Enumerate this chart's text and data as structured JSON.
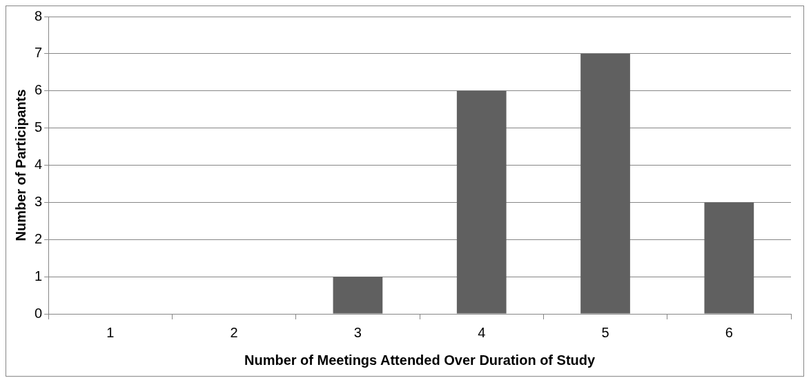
{
  "chart_data": {
    "type": "bar",
    "xlabel": "Number of Meetings Attended Over Duration of Study",
    "ylabel": "Number of Participants",
    "categories": [
      "1",
      "2",
      "3",
      "4",
      "5",
      "6"
    ],
    "values": [
      0,
      0,
      1,
      6,
      7,
      3
    ],
    "color": "#606060",
    "ylim": [
      0,
      8
    ],
    "yticks": [
      0,
      1,
      2,
      3,
      4,
      5,
      6,
      7,
      8
    ],
    "grid": "y"
  }
}
